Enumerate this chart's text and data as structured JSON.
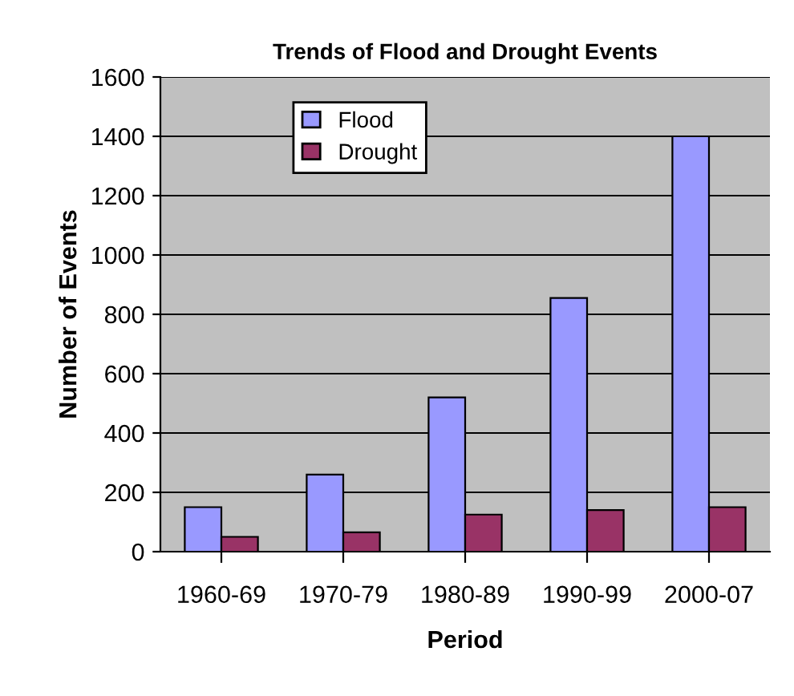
{
  "chart_data": {
    "type": "bar",
    "title": "Trends of Flood and Drought Events",
    "xlabel": "Period",
    "ylabel": "Number of Events",
    "categories": [
      "1960-69",
      "1970-79",
      "1980-89",
      "1990-99",
      "2000-07"
    ],
    "series": [
      {
        "name": "Flood",
        "color": "#9999ff",
        "values": [
          150,
          260,
          520,
          855,
          1400
        ]
      },
      {
        "name": "Drought",
        "color": "#993366",
        "values": [
          50,
          65,
          125,
          140,
          150
        ]
      }
    ],
    "ylim": [
      0,
      1600
    ],
    "yticks": [
      0,
      200,
      400,
      600,
      800,
      1000,
      1200,
      1400,
      1600
    ],
    "grid": "y",
    "legend": "top left"
  }
}
